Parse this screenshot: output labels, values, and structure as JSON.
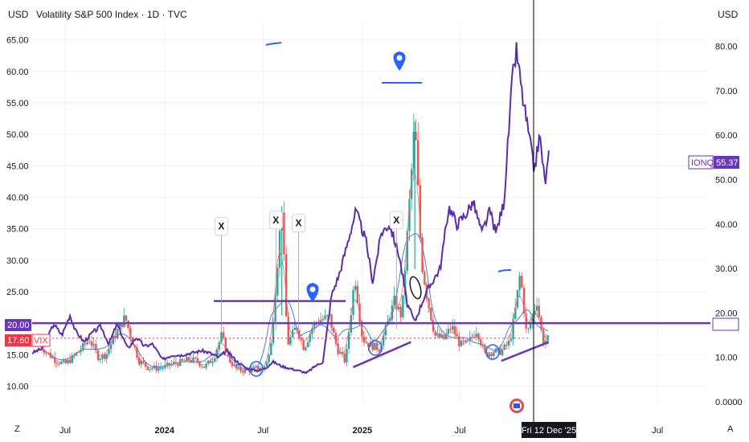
{
  "header": {
    "title": "Volatility S&P 500 Index · 1D · TVC",
    "left_unit": "USD",
    "right_unit": "USD"
  },
  "corner_labels": {
    "bottom_left": "Z",
    "bottom_right": "A"
  },
  "colors": {
    "vix_up": "#26a69a",
    "vix_down": "#ef5350",
    "ionq_line": "#5b2da8",
    "drawing_purple": "#6a35b8",
    "drawing_blue": "#2962ff",
    "ma_blue": "#4a7fd4",
    "ma_red": "#e57373",
    "grid": "#eef0f3",
    "price_red": "#f23645",
    "cursor": "#000000"
  },
  "chart_data": {
    "type": "line",
    "title": "Volatility S&P 500 Index · 1D · TVC",
    "x_ticks": [
      "Jul",
      "2024",
      "Jul",
      "2025",
      "Jul",
      "Fri 12 Dec '25",
      "Jul"
    ],
    "y_left_ticks": [
      "10.00",
      "15.00",
      "20.00",
      "25.00",
      "30.00",
      "35.00",
      "40.00",
      "45.00",
      "50.00",
      "55.00",
      "60.00",
      "65.00"
    ],
    "y_right_ticks": [
      "0.0000",
      "10.00",
      "20.00",
      "30.00",
      "40.00",
      "50.00",
      "60.00",
      "70.00",
      "80.00"
    ],
    "ylim_left": [
      7.5,
      67.5
    ],
    "ylim_right": [
      0,
      85
    ],
    "x_range": [
      "2023-05-01",
      "2026-10-01"
    ],
    "grid": true,
    "series": [
      {
        "name": "VIX",
        "axis": "left",
        "kind": "candles",
        "x": [
          "2023-05-15",
          "2023-06-01",
          "2023-06-15",
          "2023-07-01",
          "2023-07-15",
          "2023-08-01",
          "2023-08-15",
          "2023-09-01",
          "2023-09-15",
          "2023-10-01",
          "2023-10-20",
          "2023-11-01",
          "2023-11-15",
          "2023-12-01",
          "2023-12-15",
          "2024-01-01",
          "2024-01-15",
          "2024-02-01",
          "2024-02-15",
          "2024-03-01",
          "2024-03-15",
          "2024-04-01",
          "2024-04-15",
          "2024-05-01",
          "2024-05-15",
          "2024-06-01",
          "2024-06-15",
          "2024-07-01",
          "2024-07-15",
          "2024-08-05",
          "2024-08-15",
          "2024-09-01",
          "2024-09-15",
          "2024-10-01",
          "2024-10-15",
          "2024-11-01",
          "2024-11-15",
          "2024-12-01",
          "2024-12-18",
          "2025-01-01",
          "2025-01-15",
          "2025-02-01",
          "2025-02-15",
          "2025-03-01",
          "2025-03-15",
          "2025-04-08",
          "2025-04-20",
          "2025-05-01",
          "2025-05-15",
          "2025-06-01",
          "2025-06-15",
          "2025-07-01",
          "2025-07-15",
          "2025-08-01",
          "2025-08-15",
          "2025-09-01",
          "2025-09-15",
          "2025-10-01",
          "2025-10-10",
          "2025-10-20",
          "2025-11-01",
          "2025-11-20",
          "2025-12-01",
          "2025-12-12"
        ],
        "values": [
          16.5,
          15.0,
          14.0,
          13.5,
          14.5,
          16.0,
          17.5,
          14.5,
          15.0,
          18.0,
          21.0,
          17.5,
          14.0,
          13.0,
          12.8,
          13.0,
          13.5,
          13.8,
          14.2,
          14.0,
          13.0,
          14.5,
          18.0,
          14.0,
          12.5,
          12.5,
          12.8,
          12.5,
          15.5,
          38.6,
          16.5,
          19.5,
          16.0,
          19.5,
          20.5,
          21.0,
          16.0,
          13.8,
          27.5,
          17.5,
          16.5,
          16.0,
          19.5,
          23.5,
          21.0,
          52.0,
          30.0,
          24.0,
          18.0,
          17.5,
          19.5,
          16.5,
          16.8,
          19.0,
          15.0,
          15.5,
          15.5,
          17.0,
          21.5,
          28.0,
          18.0,
          23.5,
          17.0,
          17.6
        ],
        "current_value": "17.60"
      },
      {
        "name": "IONQ",
        "axis": "right",
        "x": [
          "2023-05-01",
          "2023-05-20",
          "2023-06-10",
          "2023-06-25",
          "2023-07-10",
          "2023-07-20",
          "2023-08-05",
          "2023-08-20",
          "2023-09-05",
          "2023-09-20",
          "2023-10-05",
          "2023-10-25",
          "2023-11-10",
          "2023-11-25",
          "2023-12-10",
          "2023-12-28",
          "2024-01-15",
          "2024-02-01",
          "2024-02-20",
          "2024-03-10",
          "2024-03-25",
          "2024-04-10",
          "2024-04-25",
          "2024-05-15",
          "2024-06-01",
          "2024-06-20",
          "2024-07-05",
          "2024-07-20",
          "2024-08-05",
          "2024-08-20",
          "2024-09-05",
          "2024-09-20",
          "2024-10-05",
          "2024-10-20",
          "2024-11-05",
          "2024-11-20",
          "2024-12-05",
          "2024-12-20",
          "2025-01-08",
          "2025-01-20",
          "2025-02-05",
          "2025-02-20",
          "2025-03-10",
          "2025-03-25",
          "2025-04-08",
          "2025-04-25",
          "2025-05-10",
          "2025-05-25",
          "2025-06-10",
          "2025-06-25",
          "2025-07-10",
          "2025-07-25",
          "2025-08-10",
          "2025-08-25",
          "2025-09-05",
          "2025-09-20",
          "2025-10-05",
          "2025-10-13",
          "2025-10-25",
          "2025-11-05",
          "2025-11-15",
          "2025-11-25",
          "2025-12-05",
          "2025-12-12"
        ],
        "values": [
          11.0,
          12.0,
          17.5,
          15.0,
          19.5,
          16.0,
          13.5,
          15.5,
          17.0,
          13.0,
          17.5,
          12.0,
          14.5,
          12.5,
          13.0,
          9.5,
          10.5,
          10.5,
          11.0,
          11.5,
          11.0,
          10.0,
          11.5,
          9.0,
          7.5,
          7.0,
          7.5,
          9.0,
          8.0,
          7.5,
          7.0,
          6.5,
          8.0,
          9.0,
          24.0,
          29.0,
          36.0,
          43.0,
          36.0,
          27.0,
          38.0,
          40.0,
          33.0,
          22.0,
          18.0,
          23.5,
          27.0,
          30.0,
          44.0,
          40.0,
          42.0,
          45.0,
          38.0,
          43.0,
          38.0,
          45.0,
          72.0,
          79.0,
          68.0,
          60.0,
          52.0,
          60.0,
          49.0,
          55.37
        ],
        "current_value": "55.37"
      }
    ],
    "annotations": [
      {
        "type": "horizontal_line",
        "axis": "left",
        "value": 20.0,
        "color": "purple"
      },
      {
        "type": "horizontal_segment",
        "axis": "left",
        "value": 23.5,
        "from": "2024-04-01",
        "to": "2024-12-01",
        "color": "purple"
      },
      {
        "type": "trendline",
        "axis": "left",
        "from": [
          "2024-12-15",
          13.0
        ],
        "to": [
          "2025-04-01",
          17.0
        ],
        "color": "purple"
      },
      {
        "type": "trendline",
        "axis": "left",
        "from": [
          "2025-09-15",
          14.0
        ],
        "to": [
          "2025-12-12",
          17.0
        ],
        "color": "purple"
      },
      {
        "type": "marker",
        "label": "X",
        "x": "2024-04-15",
        "y": 35.0
      },
      {
        "type": "marker",
        "label": "X",
        "x": "2024-07-25",
        "y": 36.0
      },
      {
        "type": "marker",
        "label": "X",
        "x": "2024-09-05",
        "y": 35.5
      },
      {
        "type": "marker",
        "label": "X",
        "x": "2025-03-05",
        "y": 36.0
      }
    ]
  }
}
